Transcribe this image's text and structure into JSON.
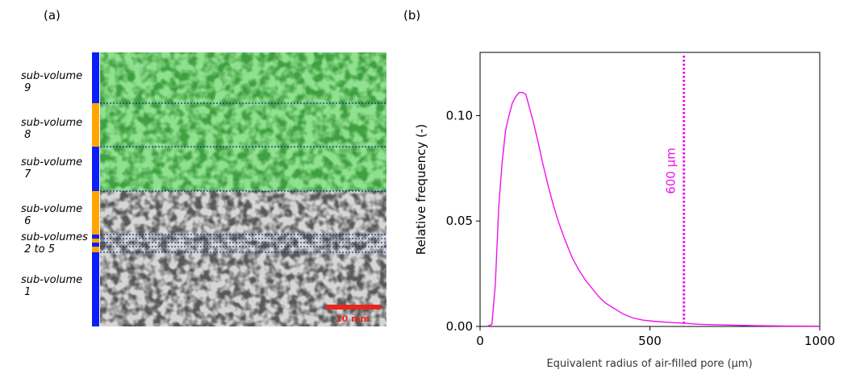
{
  "panel_a": {
    "label": "(a)",
    "sub_volumes": [
      {
        "label": "sub-volume\n 9",
        "color": "#0b1ff5"
      },
      {
        "label": "sub-volume\n 8",
        "color": "#ffa500"
      },
      {
        "label": "sub-volume\n 7",
        "color": "#0b1ff5"
      },
      {
        "label": "sub-volume\n 6",
        "color": "#ffa500"
      },
      {
        "label": "sub-volumes\n 2 to 5",
        "color": "#0b1ff5"
      },
      {
        "label": "sub-volume\n 1",
        "color": "#0b1ff5"
      }
    ],
    "scale_bar": {
      "label": "10 mm",
      "color": "#e8261f"
    },
    "colors": {
      "green_region": "#8fe08f",
      "gray_region": "#d6d6d6",
      "divider": "#1a2a9c"
    }
  },
  "panel_b": {
    "label": "(b)"
  },
  "chart_data": {
    "type": "line",
    "xlabel": "Equivalent radius of air-filled pore (μm)",
    "ylabel": "Relative frequency (-)",
    "xlim": [
      0,
      1000
    ],
    "ylim": [
      0,
      0.13
    ],
    "xticks": [
      0,
      500,
      1000
    ],
    "yticks": [
      0.0,
      0.05,
      0.1
    ],
    "ytick_labels": [
      "0.00",
      "0.05",
      "0.10"
    ],
    "grid": false,
    "series": [
      {
        "color": "#ee11ee",
        "x": [
          20,
          35,
          45,
          55,
          65,
          75,
          85,
          95,
          105,
          115,
          125,
          135,
          145,
          155,
          170,
          185,
          200,
          215,
          230,
          250,
          270,
          290,
          310,
          330,
          350,
          370,
          390,
          420,
          450,
          480,
          510,
          550,
          600,
          650,
          700,
          800,
          900,
          1000
        ],
        "y": [
          0.0,
          0.001,
          0.02,
          0.057,
          0.078,
          0.093,
          0.1,
          0.106,
          0.109,
          0.111,
          0.111,
          0.11,
          0.104,
          0.098,
          0.088,
          0.077,
          0.067,
          0.058,
          0.05,
          0.041,
          0.033,
          0.027,
          0.022,
          0.018,
          0.014,
          0.011,
          0.009,
          0.006,
          0.004,
          0.003,
          0.0025,
          0.002,
          0.0015,
          0.001,
          0.0008,
          0.0004,
          0.0002,
          0.0001
        ]
      }
    ],
    "annotations": [
      {
        "type": "vline",
        "x": 600,
        "color": "#ee11ee",
        "style": "dotted",
        "label": "600 μm"
      }
    ]
  }
}
